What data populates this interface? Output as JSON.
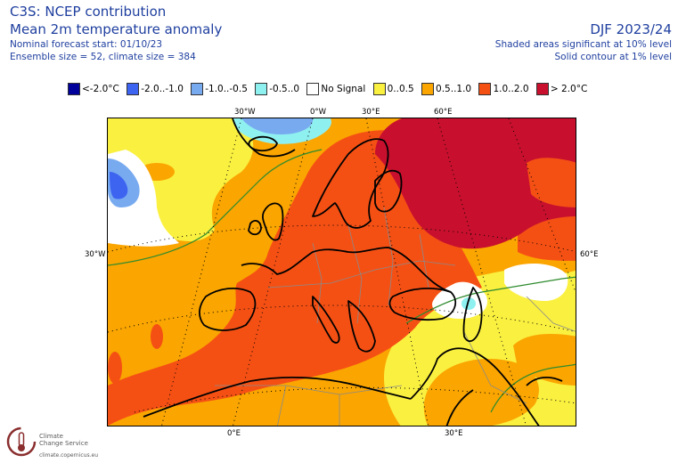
{
  "header": {
    "title": "C3S: NCEP contribution",
    "subtitle": "Mean 2m temperature anomaly",
    "forecast_start": "Nominal forecast start: 01/10/23",
    "ensemble": "Ensemble size = 52, climate size = 384",
    "season": "DJF 2023/24",
    "note_shaded": "Shaded areas significant at 10% level",
    "note_contour": "Solid contour at 1% level"
  },
  "legend": [
    {
      "label": "<-2.0°C",
      "color": "#00009a"
    },
    {
      "label": "-2.0..-1.0",
      "color": "#3c64f0"
    },
    {
      "label": "-1.0..-0.5",
      "color": "#78aaf0"
    },
    {
      "label": "-0.5..0",
      "color": "#8ff0f0"
    },
    {
      "label": "No Signal",
      "color": "#ffffff"
    },
    {
      "label": "0..0.5",
      "color": "#faf040"
    },
    {
      "label": "0.5..1.0",
      "color": "#faa500"
    },
    {
      "label": "1.0..2.0",
      "color": "#f55014"
    },
    {
      "label": "> 2.0°C",
      "color": "#c8102e"
    }
  ],
  "ticks": {
    "top": [
      "30°W",
      "0°W",
      "30°E",
      "60°E"
    ],
    "left": "30°W",
    "right": "60°E",
    "bottom": [
      "0°E",
      "30°E"
    ]
  },
  "logo": {
    "line1": "Climate",
    "line2": "Change Service",
    "url": "climate.copernicus.eu"
  }
}
